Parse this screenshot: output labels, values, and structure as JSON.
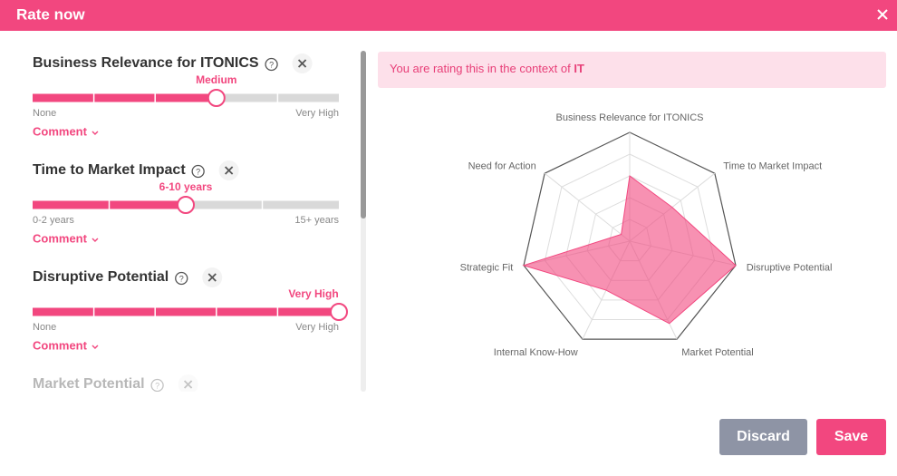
{
  "header": {
    "title": "Rate now"
  },
  "criteria": [
    {
      "title": "Business Relevance for ITONICS",
      "level": 3,
      "levels": 5,
      "value_label": "Medium",
      "min_label": "None",
      "max_label": "Very High",
      "comment": "Comment"
    },
    {
      "title": "Time to Market Impact",
      "level": 2,
      "levels": 4,
      "value_label": "6-10 years",
      "min_label": "0-2 years",
      "max_label": "15+ years",
      "comment": "Comment"
    },
    {
      "title": "Disruptive Potential",
      "level": 5,
      "levels": 5,
      "value_label": "Very High",
      "min_label": "None",
      "max_label": "Very High",
      "comment": "Comment"
    },
    {
      "title": "Market Potential"
    }
  ],
  "context_note": {
    "text": "You are rating this in the context of ",
    "highlight": "IT"
  },
  "chart_data": {
    "type": "radar",
    "categories": [
      "Business Relevance for ITONICS",
      "Time to Market Impact",
      "Disruptive Potential",
      "Market Potential",
      "Internal Know-How",
      "Strategic Fit",
      "Need for Action"
    ],
    "values": [
      3,
      2.5,
      5,
      4.2,
      2.5,
      5,
      0.5
    ],
    "color": "#f2477f",
    "rlim": [
      0,
      5
    ],
    "rticks": [
      1,
      2,
      3,
      4,
      5
    ]
  },
  "buttons": {
    "discard": "Discard",
    "save": "Save"
  }
}
